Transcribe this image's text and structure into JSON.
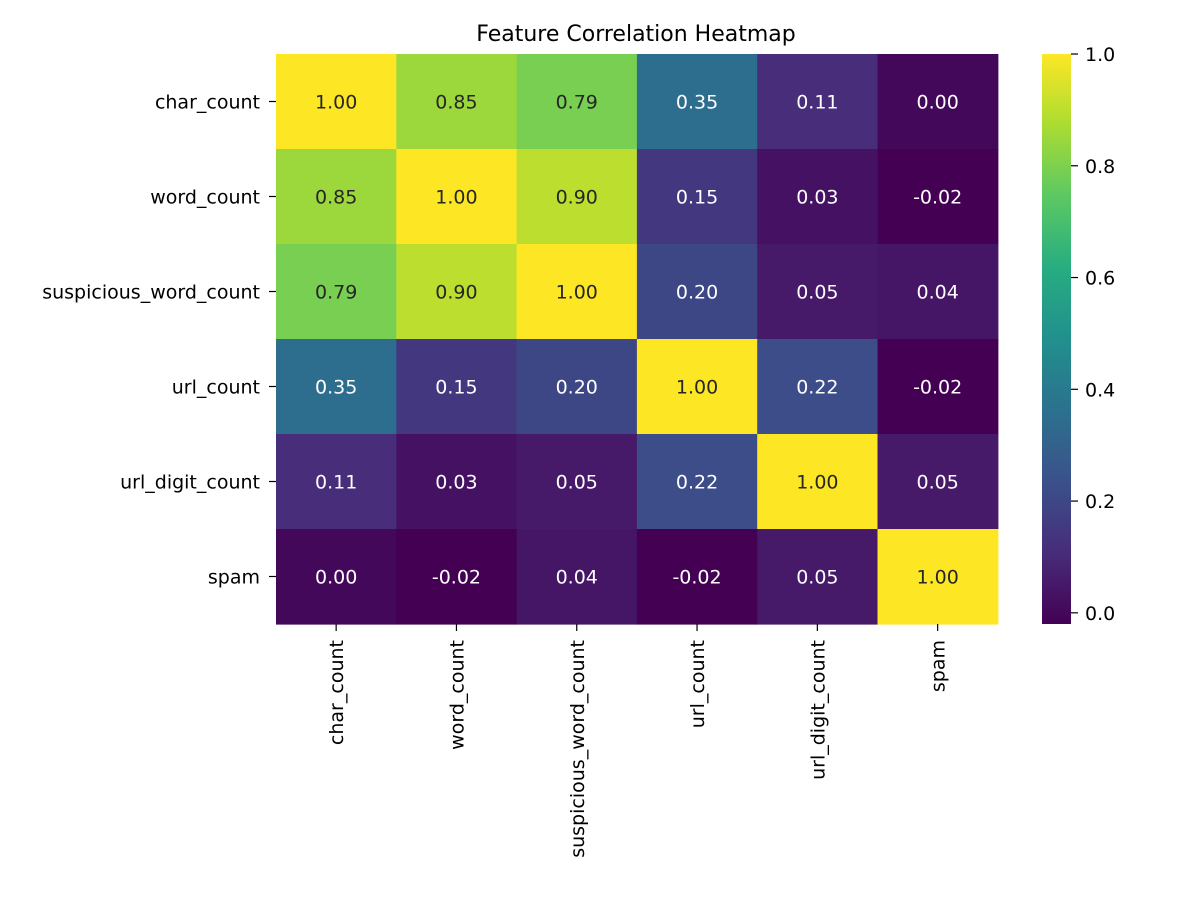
{
  "chart_data": {
    "type": "heatmap",
    "title": "Feature Correlation Heatmap",
    "rows": [
      "char_count",
      "word_count",
      "suspicious_word_count",
      "url_count",
      "url_digit_count",
      "spam"
    ],
    "columns": [
      "char_count",
      "word_count",
      "suspicious_word_count",
      "url_count",
      "url_digit_count",
      "spam"
    ],
    "values": [
      [
        1.0,
        0.85,
        0.79,
        0.35,
        0.11,
        0.0
      ],
      [
        0.85,
        1.0,
        0.9,
        0.15,
        0.03,
        -0.02
      ],
      [
        0.79,
        0.9,
        1.0,
        0.2,
        0.05,
        0.04
      ],
      [
        0.35,
        0.15,
        0.2,
        1.0,
        0.22,
        -0.02
      ],
      [
        0.11,
        0.03,
        0.05,
        0.22,
        1.0,
        0.05
      ],
      [
        0.0,
        -0.02,
        0.04,
        -0.02,
        0.05,
        1.0
      ]
    ],
    "labels": [
      [
        "1.00",
        "0.85",
        "0.79",
        "0.35",
        "0.11",
        "0.00"
      ],
      [
        "0.85",
        "1.00",
        "0.90",
        "0.15",
        "0.03",
        "-0.02"
      ],
      [
        "0.79",
        "0.90",
        "1.00",
        "0.20",
        "0.05",
        "0.04"
      ],
      [
        "0.35",
        "0.15",
        "0.20",
        "1.00",
        "0.22",
        "-0.02"
      ],
      [
        "0.11",
        "0.03",
        "0.05",
        "0.22",
        "1.00",
        "0.05"
      ],
      [
        "0.00",
        "-0.02",
        "0.04",
        "-0.02",
        "0.05",
        "1.00"
      ]
    ],
    "colormap": "viridis",
    "vmin": -0.02,
    "vmax": 1.0,
    "colorbar_ticks": [
      {
        "value": 0.0,
        "label": "0.0"
      },
      {
        "value": 0.2,
        "label": "0.2"
      },
      {
        "value": 0.4,
        "label": "0.4"
      },
      {
        "value": 0.6,
        "label": "0.6"
      },
      {
        "value": 0.8,
        "label": "0.8"
      },
      {
        "value": 1.0,
        "label": "1.0"
      }
    ],
    "colorbar_position": "right"
  }
}
